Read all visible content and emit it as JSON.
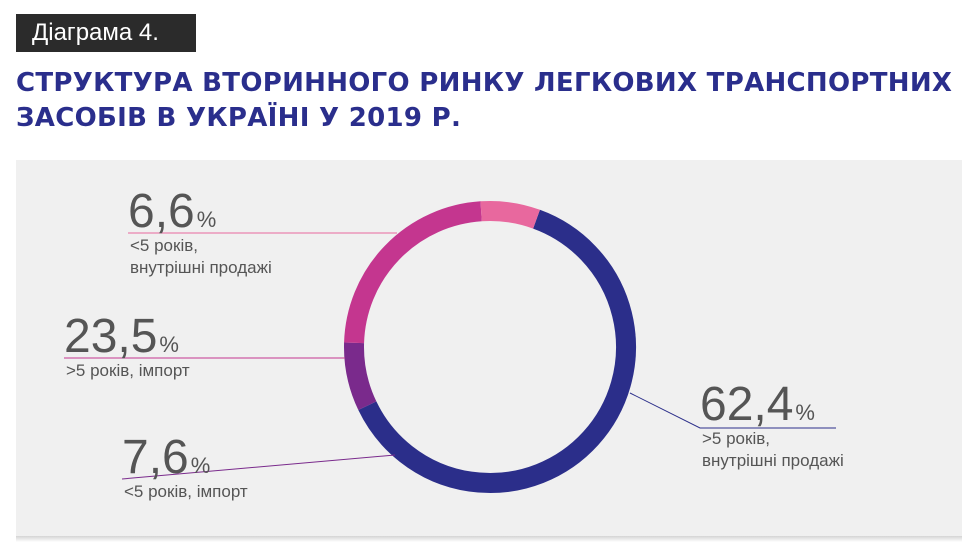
{
  "header": {
    "tag": "Діаграма 4.",
    "title_line1": "СТРУКТУРА ВТОРИННОГО РИНКУ ЛЕГКОВИХ ТРАНСПОРТНИХ",
    "title_line2": "ЗАСОБІВ В УКРАЇНІ У 2019 Р."
  },
  "chart_data": {
    "type": "pie",
    "donut": true,
    "title": "СТРУКТУРА ВТОРИННОГО РИНКУ ЛЕГКОВИХ ТРАНСПОРТНИХ ЗАСОБІВ В УКРАЇНІ У 2019 Р.",
    "unit": "%",
    "slices": [
      {
        "value": 62.4,
        "display": "62,4",
        "label_lines": [
          ">5 років,",
          "внутрішні продажі"
        ],
        "color": "#2b2e8a"
      },
      {
        "value": 7.6,
        "display": "7,6",
        "label_lines": [
          "<5 років, імпорт"
        ],
        "color": "#7a2a8c"
      },
      {
        "value": 23.5,
        "display": "23,5",
        "label_lines": [
          ">5 років, імпорт"
        ],
        "color": "#c4368f"
      },
      {
        "value": 6.6,
        "display": "6,6",
        "label_lines": [
          "<5 років,",
          "внутрішні продажі"
        ],
        "color": "#e8689e"
      }
    ]
  }
}
